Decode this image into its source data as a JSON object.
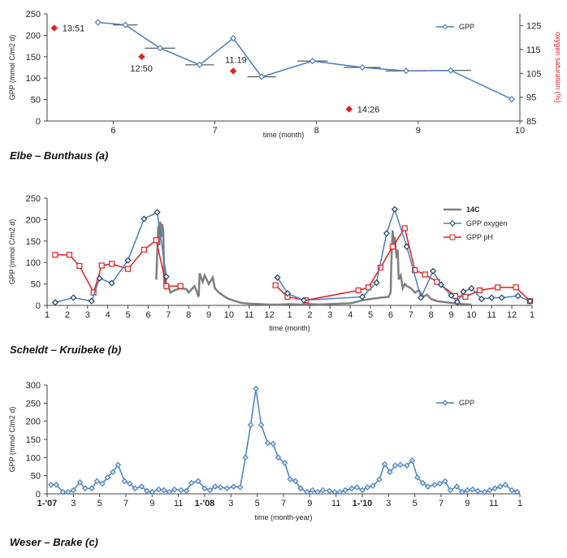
{
  "captions": {
    "a": "Elbe – Bunthaus (a)",
    "b": "Scheldt – Kruibeke (b)",
    "c": "Weser – Brake (c)"
  },
  "colors": {
    "gpp": "#4a7ebb",
    "ph": "#e02020",
    "c14": "#7f7f7f",
    "oxy_marker": "#e02020"
  },
  "chart_data": [
    {
      "id": "a",
      "type": "line",
      "title": "",
      "xlabel": "time (month)",
      "ylabel": "GPP (mmol C/m2 d)",
      "y2label": "oxygen saturation (%)",
      "xlim": [
        5.35,
        10.0
      ],
      "ylim": [
        0,
        250
      ],
      "y2lim": [
        85,
        130
      ],
      "xticks": [
        6,
        7,
        8,
        9,
        10
      ],
      "yticks": [
        0,
        50,
        100,
        150,
        200,
        250
      ],
      "y2ticks": [
        85,
        95,
        105,
        115,
        125
      ],
      "legend": [
        "GPP"
      ],
      "series": [
        {
          "name": "GPP",
          "x": [
            5.85,
            6.12,
            6.46,
            6.85,
            7.18,
            7.46,
            7.96,
            8.45,
            8.88,
            9.32,
            9.92
          ],
          "y": [
            230,
            224,
            170,
            131,
            193,
            103,
            140,
            125,
            117,
            118,
            51
          ],
          "xerr": [
            0,
            0.12,
            0.15,
            0.14,
            0,
            0.14,
            0.15,
            0.18,
            0.2,
            0.2,
            0
          ]
        }
      ],
      "oxygen_points": [
        {
          "x": 5.42,
          "y2": 124,
          "label": "13:51"
        },
        {
          "x": 6.28,
          "y2": 112,
          "label": "12:50"
        },
        {
          "x": 7.18,
          "y2": 106,
          "label": "11:19"
        },
        {
          "x": 8.32,
          "y2": 90,
          "label": "14:26"
        }
      ]
    },
    {
      "id": "b",
      "type": "line",
      "title": "",
      "xlabel": "time (month)",
      "ylabel": "GPP (mmol C/m2 d)",
      "xlim": [
        1,
        25
      ],
      "ylim": [
        0,
        250
      ],
      "xticks": [
        1,
        2,
        3,
        4,
        5,
        6,
        7,
        8,
        9,
        10,
        11,
        12,
        13,
        14,
        15,
        16,
        17,
        18,
        19,
        20,
        21,
        22,
        23,
        24,
        25
      ],
      "xtick_labels": [
        "1",
        "2",
        "3",
        "4",
        "5",
        "6",
        "7",
        "8",
        "9",
        "10",
        "11",
        "12",
        "1",
        "2",
        "3",
        "4",
        "5",
        "6",
        "7",
        "8",
        "9",
        "10",
        "11",
        "12",
        "1"
      ],
      "yticks": [
        0,
        50,
        100,
        150,
        200,
        250
      ],
      "legend": [
        "14C",
        "GPP  oxygen",
        "GPP pH"
      ],
      "series": [
        {
          "name": "14C",
          "x": [
            6.4,
            6.5,
            6.55,
            6.6,
            6.65,
            6.7,
            6.75,
            6.8,
            6.85,
            6.9,
            7.0,
            7.1,
            7.3,
            7.6,
            7.9,
            8.0,
            8.3,
            8.5,
            8.55,
            8.7,
            8.8,
            9.0,
            9.2,
            9.3,
            9.5,
            9.8,
            10.0,
            10.3,
            10.6,
            11.0,
            11.5,
            12.0,
            12.5,
            13.0,
            13.5,
            14.0,
            14.5,
            15.0,
            15.5,
            16.0,
            16.3,
            16.6,
            17.0,
            17.5,
            17.9,
            18.0,
            18.05,
            18.1,
            18.15,
            18.2,
            18.3,
            18.35,
            18.4,
            18.5,
            18.6,
            18.7,
            18.8,
            19.0,
            19.2,
            19.4,
            19.6,
            19.8,
            20.0,
            20.3,
            20.6,
            21.0,
            21.5,
            22.0
          ],
          "y": [
            60,
            185,
            140,
            195,
            160,
            190,
            170,
            45,
            80,
            40,
            45,
            30,
            35,
            40,
            38,
            30,
            45,
            20,
            75,
            55,
            70,
            50,
            65,
            40,
            30,
            20,
            15,
            10,
            6,
            4,
            3,
            2,
            2,
            3,
            2,
            3,
            2,
            3,
            4,
            5,
            8,
            12,
            15,
            18,
            20,
            30,
            120,
            175,
            140,
            160,
            110,
            130,
            60,
            70,
            40,
            50,
            45,
            40,
            30,
            35,
            20,
            25,
            15,
            10,
            8,
            6,
            3,
            2
          ]
        },
        {
          "name": "GPP  oxygen",
          "x": [
            1.4,
            2.3,
            3.2,
            3.6,
            4.2,
            5.0,
            5.8,
            6.45,
            6.9,
            12.4,
            12.9,
            13.7,
            16.6,
            17.3,
            17.8,
            18.2,
            18.8,
            19.5,
            20.1,
            20.5,
            21.0,
            21.3,
            21.6,
            22.0,
            22.5,
            23.0,
            23.5,
            24.3,
            24.9
          ],
          "y": [
            7,
            18,
            10,
            63,
            52,
            105,
            202,
            217,
            67,
            65,
            28,
            12,
            20,
            53,
            168,
            224,
            137,
            18,
            80,
            48,
            23,
            8,
            32,
            40,
            15,
            18,
            18,
            22,
            10
          ]
        },
        {
          "name": "GPP pH",
          "x": [
            1.4,
            2.1,
            2.6,
            3.3,
            3.7,
            4.2,
            5.0,
            5.8,
            6.4,
            6.9,
            7.6,
            12.3,
            12.9,
            13.8,
            16.4,
            16.9,
            17.5,
            18.1,
            18.7,
            19.2,
            19.7,
            20.3,
            21.2,
            21.7,
            22.4,
            23.3,
            24.2,
            24.9
          ],
          "y": [
            118,
            118,
            92,
            30,
            93,
            97,
            85,
            130,
            152,
            45,
            45,
            47,
            20,
            12,
            35,
            42,
            88,
            137,
            180,
            82,
            72,
            55,
            22,
            20,
            35,
            42,
            42,
            10
          ]
        }
      ]
    },
    {
      "id": "c",
      "type": "line",
      "title": "",
      "xlabel": "time (month-year)",
      "ylabel": "GPP (mmol C/m2 d)",
      "xlim": [
        0,
        36
      ],
      "ylim": [
        0,
        300
      ],
      "xticks": [
        0,
        2,
        4,
        6,
        8,
        10,
        12,
        14,
        16,
        18,
        20,
        22,
        24,
        26,
        28,
        30,
        32,
        34,
        36
      ],
      "xtick_labels": [
        "1-'07",
        "3",
        "5",
        "7",
        "9",
        "11",
        "1-'08",
        "3",
        "5",
        "7",
        "9",
        "11",
        "1-'10",
        "3",
        "5",
        "7",
        "9",
        "11",
        "1"
      ],
      "yticks": [
        0,
        50,
        100,
        150,
        200,
        250,
        300
      ],
      "legend": [
        "GPP"
      ],
      "series": [
        {
          "name": "GPP",
          "x": [
            0.3,
            0.7,
            1.2,
            1.6,
            2.0,
            2.5,
            2.9,
            3.4,
            3.8,
            4.2,
            4.6,
            5.0,
            5.4,
            5.9,
            6.3,
            6.7,
            7.2,
            7.6,
            8.0,
            8.5,
            8.9,
            9.3,
            9.7,
            10.2,
            10.6,
            11.0,
            11.5,
            12.0,
            12.4,
            12.8,
            13.2,
            13.7,
            14.2,
            14.7,
            15.1,
            15.5,
            15.9,
            16.3,
            16.8,
            17.2,
            17.6,
            18.1,
            18.5,
            18.9,
            19.3,
            19.8,
            20.2,
            20.6,
            21.0,
            21.5,
            21.9,
            22.3,
            22.7,
            23.2,
            23.6,
            24.0,
            24.4,
            24.8,
            25.3,
            25.7,
            26.1,
            26.5,
            26.9,
            27.4,
            27.8,
            28.2,
            28.6,
            29.0,
            29.5,
            29.9,
            30.3,
            30.7,
            31.2,
            31.6,
            32.0,
            32.4,
            32.8,
            33.3,
            33.7,
            34.1,
            34.5,
            34.9,
            35.4,
            35.8
          ],
          "y": [
            25,
            25,
            5,
            5,
            10,
            32,
            15,
            15,
            35,
            28,
            45,
            60,
            80,
            35,
            28,
            15,
            20,
            8,
            5,
            12,
            10,
            5,
            12,
            10,
            8,
            30,
            35,
            15,
            10,
            20,
            18,
            15,
            20,
            18,
            100,
            190,
            290,
            190,
            140,
            138,
            100,
            85,
            40,
            35,
            15,
            5,
            10,
            5,
            10,
            8,
            5,
            5,
            10,
            15,
            18,
            10,
            18,
            22,
            40,
            82,
            60,
            78,
            80,
            78,
            92,
            45,
            30,
            20,
            25,
            28,
            35,
            10,
            20,
            5,
            10,
            12,
            8,
            5,
            10,
            15,
            20,
            25,
            10,
            5
          ]
        }
      ]
    }
  ]
}
